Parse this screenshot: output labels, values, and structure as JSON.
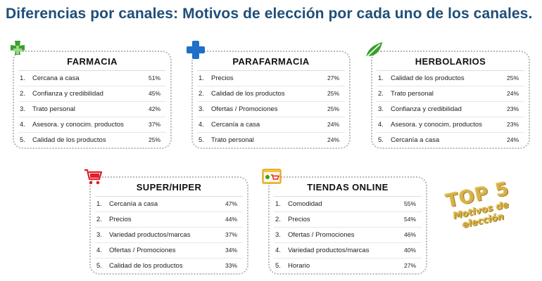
{
  "title": "Diferencias por canales: Motivos de elección por cada uno de los canales.",
  "cards": [
    {
      "name": "FARMACIA",
      "icon": "green-cross-icon",
      "items": [
        {
          "rank": "1.",
          "label": "Cercana a casa",
          "pct": "51%"
        },
        {
          "rank": "2.",
          "label": "Confianza y credibilidad",
          "pct": "45%"
        },
        {
          "rank": "3.",
          "label": "Trato personal",
          "pct": "42%"
        },
        {
          "rank": "4.",
          "label": "Asesora. y conocim. productos",
          "pct": "37%"
        },
        {
          "rank": "5.",
          "label": "Calidad de los productos",
          "pct": "25%"
        }
      ]
    },
    {
      "name": "PARAFARMACIA",
      "icon": "blue-cross-icon",
      "items": [
        {
          "rank": "1.",
          "label": "Precios",
          "pct": "27%"
        },
        {
          "rank": "2.",
          "label": "Calidad de los productos",
          "pct": "25%"
        },
        {
          "rank": "3.",
          "label": "Ofertas / Promociones",
          "pct": "25%"
        },
        {
          "rank": "4.",
          "label": "Cercanía a casa",
          "pct": "24%"
        },
        {
          "rank": "5.",
          "label": "Trato personal",
          "pct": "24%"
        }
      ]
    },
    {
      "name": "HERBOLARIOS",
      "icon": "leaf-icon",
      "items": [
        {
          "rank": "1.",
          "label": "Calidad de los productos",
          "pct": "25%"
        },
        {
          "rank": "2.",
          "label": "Trato personal",
          "pct": "24%"
        },
        {
          "rank": "3.",
          "label": "Confianza y credibilidad",
          "pct": "23%"
        },
        {
          "rank": "4.",
          "label": "Asesora. y conocim. productos",
          "pct": "23%"
        },
        {
          "rank": "5.",
          "label": "Cercanía a casa",
          "pct": "24%"
        }
      ]
    },
    {
      "name": "SUPER/HIPER",
      "icon": "shopping-cart-icon",
      "items": [
        {
          "rank": "1.",
          "label": "Cercanía a casa",
          "pct": "47%"
        },
        {
          "rank": "2.",
          "label": "Precios",
          "pct": "44%"
        },
        {
          "rank": "3.",
          "label": "Variedad productos/marcas",
          "pct": "37%"
        },
        {
          "rank": "4.",
          "label": "Ofertas / Promociones",
          "pct": "34%"
        },
        {
          "rank": "5.",
          "label": "Calidad de los productos",
          "pct": "33%"
        }
      ]
    },
    {
      "name": "TIENDAS ONLINE",
      "icon": "online-shop-icon",
      "items": [
        {
          "rank": "1.",
          "label": "Comodidad",
          "pct": "55%"
        },
        {
          "rank": "2.",
          "label": "Precios",
          "pct": "54%"
        },
        {
          "rank": "3.",
          "label": "Ofertas / Promociones",
          "pct": "46%"
        },
        {
          "rank": "4.",
          "label": "Variedad productos/marcas",
          "pct": "40%"
        },
        {
          "rank": "5.",
          "label": "Horario",
          "pct": "27%"
        }
      ]
    }
  ],
  "stamp": {
    "line1": "TOP 5",
    "line2": "Motivos de",
    "line3": "elección"
  },
  "colors": {
    "title": "#1f4e79",
    "green": "#3aa02c",
    "blue": "#1f6fc8",
    "red": "#e0202a",
    "gold": "#d7b24a"
  }
}
